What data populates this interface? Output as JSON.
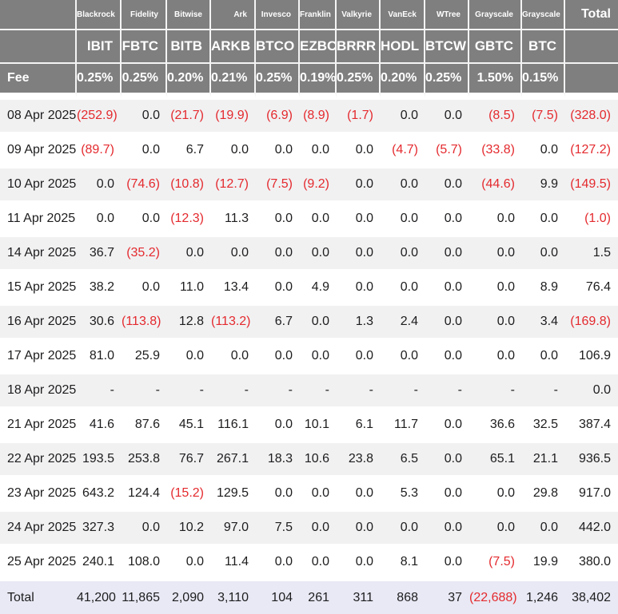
{
  "colors": {
    "header_bg": "#7f7f7f",
    "header_text": "#ffffff",
    "negative_value": "#e42a2e",
    "body_text": "#1d1d1f",
    "stripe_row_bg": "#f1f1f2",
    "footer_row_bg": "#e8e9f4"
  },
  "header": {
    "fee_label": "Fee",
    "total_label": "Total"
  },
  "chart_data": {
    "type": "table",
    "columns": [
      {
        "provider": "Blackrock",
        "ticker": "IBIT",
        "fee": "0.25%"
      },
      {
        "provider": "Fidelity",
        "ticker": "FBTC",
        "fee": "0.25%"
      },
      {
        "provider": "Bitwise",
        "ticker": "BITB",
        "fee": "0.20%"
      },
      {
        "provider": "Ark",
        "ticker": "ARKB",
        "fee": "0.21%"
      },
      {
        "provider": "Invesco",
        "ticker": "BTCO",
        "fee": "0.25%"
      },
      {
        "provider": "Franklin",
        "ticker": "EZBC",
        "fee": "0.19%"
      },
      {
        "provider": "Valkyrie",
        "ticker": "BRRR",
        "fee": "0.25%"
      },
      {
        "provider": "VanEck",
        "ticker": "HODL",
        "fee": "0.20%"
      },
      {
        "provider": "WTree",
        "ticker": "BTCW",
        "fee": "0.25%"
      },
      {
        "provider": "Grayscale",
        "ticker": "GBTC",
        "fee": "1.50%"
      },
      {
        "provider": "Grayscale",
        "ticker": "BTC",
        "fee": "0.15%"
      }
    ],
    "rows": [
      {
        "date": "08 Apr 2025",
        "values": [
          "(252.9)",
          "0.0",
          "(21.7)",
          "(19.9)",
          "(6.9)",
          "(8.9)",
          "(1.7)",
          "0.0",
          "0.0",
          "(8.5)",
          "(7.5)"
        ],
        "total": "(328.0)"
      },
      {
        "date": "09 Apr 2025",
        "values": [
          "(89.7)",
          "0.0",
          "6.7",
          "0.0",
          "0.0",
          "0.0",
          "0.0",
          "(4.7)",
          "(5.7)",
          "(33.8)",
          "0.0"
        ],
        "total": "(127.2)"
      },
      {
        "date": "10 Apr 2025",
        "values": [
          "0.0",
          "(74.6)",
          "(10.8)",
          "(12.7)",
          "(7.5)",
          "(9.2)",
          "0.0",
          "0.0",
          "0.0",
          "(44.6)",
          "9.9"
        ],
        "total": "(149.5)"
      },
      {
        "date": "11 Apr 2025",
        "values": [
          "0.0",
          "0.0",
          "(12.3)",
          "11.3",
          "0.0",
          "0.0",
          "0.0",
          "0.0",
          "0.0",
          "0.0",
          "0.0"
        ],
        "total": "(1.0)"
      },
      {
        "date": "14 Apr 2025",
        "values": [
          "36.7",
          "(35.2)",
          "0.0",
          "0.0",
          "0.0",
          "0.0",
          "0.0",
          "0.0",
          "0.0",
          "0.0",
          "0.0"
        ],
        "total": "1.5"
      },
      {
        "date": "15 Apr 2025",
        "values": [
          "38.2",
          "0.0",
          "11.0",
          "13.4",
          "0.0",
          "4.9",
          "0.0",
          "0.0",
          "0.0",
          "0.0",
          "8.9"
        ],
        "total": "76.4"
      },
      {
        "date": "16 Apr 2025",
        "values": [
          "30.6",
          "(113.8)",
          "12.8",
          "(113.2)",
          "6.7",
          "0.0",
          "1.3",
          "2.4",
          "0.0",
          "0.0",
          "3.4"
        ],
        "total": "(169.8)"
      },
      {
        "date": "17 Apr 2025",
        "values": [
          "81.0",
          "25.9",
          "0.0",
          "0.0",
          "0.0",
          "0.0",
          "0.0",
          "0.0",
          "0.0",
          "0.0",
          "0.0"
        ],
        "total": "106.9"
      },
      {
        "date": "18 Apr 2025",
        "values": [
          "-",
          "-",
          "-",
          "-",
          "-",
          "-",
          "-",
          "-",
          "-",
          "-",
          "-"
        ],
        "total": "0.0"
      },
      {
        "date": "21 Apr 2025",
        "values": [
          "41.6",
          "87.6",
          "45.1",
          "116.1",
          "0.0",
          "10.1",
          "6.1",
          "11.7",
          "0.0",
          "36.6",
          "32.5"
        ],
        "total": "387.4"
      },
      {
        "date": "22 Apr 2025",
        "values": [
          "193.5",
          "253.8",
          "76.7",
          "267.1",
          "18.3",
          "10.6",
          "23.8",
          "6.5",
          "0.0",
          "65.1",
          "21.1"
        ],
        "total": "936.5"
      },
      {
        "date": "23 Apr 2025",
        "values": [
          "643.2",
          "124.4",
          "(15.2)",
          "129.5",
          "0.0",
          "0.0",
          "0.0",
          "5.3",
          "0.0",
          "0.0",
          "29.8"
        ],
        "total": "917.0"
      },
      {
        "date": "24 Apr 2025",
        "values": [
          "327.3",
          "0.0",
          "10.2",
          "97.0",
          "7.5",
          "0.0",
          "0.0",
          "0.0",
          "0.0",
          "0.0",
          "0.0"
        ],
        "total": "442.0"
      },
      {
        "date": "25 Apr 2025",
        "values": [
          "240.1",
          "108.0",
          "0.0",
          "11.4",
          "0.0",
          "0.0",
          "0.0",
          "8.1",
          "0.0",
          "(7.5)",
          "19.9"
        ],
        "total": "380.0"
      }
    ],
    "footer": {
      "label": "Total",
      "values": [
        "41,200",
        "11,865",
        "2,090",
        "3,110",
        "104",
        "261",
        "311",
        "868",
        "37",
        "(22,688)",
        "1,246"
      ],
      "total": "38,402"
    }
  }
}
